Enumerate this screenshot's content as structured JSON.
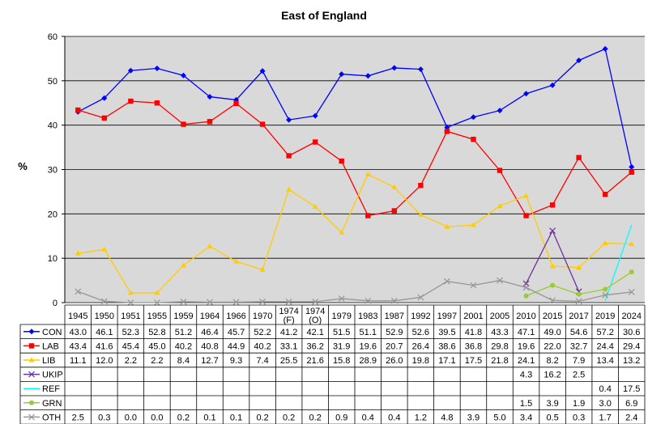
{
  "chart_data": {
    "type": "line",
    "title": "East of England",
    "ylabel": "%",
    "ylim": [
      0,
      60
    ],
    "yticks": [
      0,
      10,
      20,
      30,
      40,
      50,
      60
    ],
    "grid": true,
    "legend": "table-below",
    "categories": [
      "1945",
      "1950",
      "1951",
      "1955",
      "1959",
      "1964",
      "1966",
      "1970",
      [
        "1974",
        "(F)"
      ],
      [
        "1974",
        "(O)"
      ],
      "1979",
      "1983",
      "1987",
      "1992",
      "1997",
      "2001",
      "2005",
      "2010",
      "2015",
      "2017",
      "2019",
      "2024"
    ],
    "series": [
      {
        "name": "CON",
        "color": "#0000ff",
        "marker": "diamond",
        "values": [
          43.0,
          46.1,
          52.3,
          52.8,
          51.2,
          46.4,
          45.7,
          52.2,
          41.2,
          42.1,
          51.5,
          51.1,
          52.9,
          52.6,
          39.5,
          41.8,
          43.3,
          47.1,
          49.0,
          54.6,
          57.2,
          30.6
        ],
        "labels": [
          "43.0",
          "46.1",
          "52.3",
          "52.8",
          "51.2",
          "46.4",
          "45.7",
          "52.2",
          "41.2",
          "42.1",
          "51.5",
          "51.1",
          "52.9",
          "52.6",
          "39.5",
          "41.8",
          "43.3",
          "47.1",
          "49.0",
          "54.6",
          "57.2",
          "30.6"
        ]
      },
      {
        "name": "LAB",
        "color": "#ff0000",
        "marker": "square",
        "values": [
          43.4,
          41.6,
          45.4,
          45.0,
          40.2,
          40.8,
          44.9,
          40.2,
          33.1,
          36.2,
          31.9,
          19.6,
          20.7,
          26.4,
          38.6,
          36.8,
          29.8,
          19.6,
          22.0,
          32.7,
          24.4,
          29.4
        ],
        "labels": [
          "43.4",
          "41.6",
          "45.4",
          "45.0",
          "40.2",
          "40.8",
          "44.9",
          "40.2",
          "33.1",
          "36.2",
          "31.9",
          "19.6",
          "20.7",
          "26.4",
          "38.6",
          "36.8",
          "29.8",
          "19.6",
          "22.0",
          "32.7",
          "24.4",
          "29.4"
        ]
      },
      {
        "name": "LIB",
        "color": "#ffcc00",
        "marker": "triangle",
        "values": [
          11.1,
          12.0,
          2.2,
          2.2,
          8.4,
          12.7,
          9.3,
          7.4,
          25.5,
          21.6,
          15.8,
          28.9,
          26.0,
          19.8,
          17.1,
          17.5,
          21.8,
          24.1,
          8.2,
          7.9,
          13.4,
          13.2
        ],
        "labels": [
          "11.1",
          "12.0",
          "2.2",
          "2.2",
          "8.4",
          "12.7",
          "9.3",
          "7.4",
          "25.5",
          "21.6",
          "15.8",
          "28.9",
          "26.0",
          "19.8",
          "17.1",
          "17.5",
          "21.8",
          "24.1",
          "8.2",
          "7.9",
          "13.4",
          "13.2"
        ]
      },
      {
        "name": "UKIP",
        "color": "#7030a0",
        "marker": "x",
        "values": [
          null,
          null,
          null,
          null,
          null,
          null,
          null,
          null,
          null,
          null,
          null,
          null,
          null,
          null,
          null,
          null,
          null,
          4.3,
          16.2,
          2.5,
          null,
          null
        ],
        "labels": [
          "",
          "",
          "",
          "",
          "",
          "",
          "",
          "",
          "",
          "",
          "",
          "",
          "",
          "",
          "",
          "",
          "",
          "4.3",
          "16.2",
          "2.5",
          "",
          ""
        ]
      },
      {
        "name": "REF",
        "color": "#00ffff",
        "marker": "none",
        "values": [
          null,
          null,
          null,
          null,
          null,
          null,
          null,
          null,
          null,
          null,
          null,
          null,
          null,
          null,
          null,
          null,
          null,
          null,
          null,
          null,
          0.4,
          17.5
        ],
        "labels": [
          "",
          "",
          "",
          "",
          "",
          "",
          "",
          "",
          "",
          "",
          "",
          "",
          "",
          "",
          "",
          "",
          "",
          "",
          "",
          "",
          "0.4",
          "17.5"
        ]
      },
      {
        "name": "GRN",
        "color": "#99cc33",
        "marker": "circle",
        "values": [
          null,
          null,
          null,
          null,
          null,
          null,
          null,
          null,
          null,
          null,
          null,
          null,
          null,
          null,
          null,
          null,
          null,
          1.5,
          3.9,
          1.9,
          3.0,
          6.9
        ],
        "labels": [
          "",
          "",
          "",
          "",
          "",
          "",
          "",
          "",
          "",
          "",
          "",
          "",
          "",
          "",
          "",
          "",
          "",
          "1.5",
          "3.9",
          "1.9",
          "3.0",
          "6.9"
        ]
      },
      {
        "name": "OTH",
        "color": "#969696",
        "marker": "x",
        "values": [
          2.5,
          0.3,
          0.0,
          0.0,
          0.2,
          0.1,
          0.1,
          0.2,
          0.2,
          0.2,
          0.9,
          0.4,
          0.4,
          1.2,
          4.8,
          3.9,
          5.0,
          3.4,
          0.5,
          0.3,
          1.7,
          2.4
        ],
        "labels": [
          "2.5",
          "0.3",
          "0.0",
          "0.0",
          "0.2",
          "0.1",
          "0.1",
          "0.2",
          "0.2",
          "0.2",
          "0.9",
          "0.4",
          "0.4",
          "1.2",
          "4.8",
          "3.9",
          "5.0",
          "3.4",
          "0.5",
          "0.3",
          "1.7",
          "2.4"
        ]
      }
    ]
  }
}
